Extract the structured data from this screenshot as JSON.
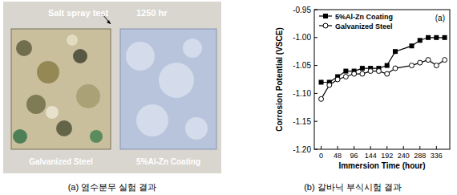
{
  "chart_data": {
    "type": "line",
    "annotation": "(a)",
    "x_label": "Immersion Time (hour)",
    "y_label": "Corrosion Potential (VSCE)",
    "x": [
      0,
      24,
      48,
      72,
      96,
      120,
      144,
      168,
      192,
      216,
      264,
      288,
      312,
      336,
      360
    ],
    "series": [
      {
        "name": "5%Al-Zn Coating",
        "color": "#000000",
        "marker": "square",
        "line_style": "solid",
        "values": [
          -1.08,
          -1.08,
          -1.07,
          -1.06,
          -1.06,
          -1.055,
          -1.055,
          -1.055,
          -1.05,
          -1.025,
          -1.015,
          -1.005,
          -1.0,
          -1.0,
          -1.0
        ]
      },
      {
        "name": "Galvanized Steel",
        "color": "#000000",
        "marker": "open-circle",
        "line_style": "solid",
        "values": [
          -1.11,
          -1.085,
          -1.075,
          -1.07,
          -1.065,
          -1.065,
          -1.06,
          -1.06,
          -1.065,
          -1.055,
          -1.05,
          -1.045,
          -1.04,
          -1.05,
          -1.04
        ]
      }
    ],
    "xlim": [
      -20,
      375
    ],
    "xticks": [
      0,
      48,
      96,
      144,
      192,
      240,
      288,
      336
    ],
    "ylim": [
      -1.2,
      -0.95
    ],
    "yticks": [
      {
        "value": -1.2,
        "label": "-1.20"
      },
      -1.15,
      {
        "value": -1.1,
        "label": "-1.10"
      },
      -1.05,
      {
        "value": -1.0,
        "label": "-1.00"
      },
      -0.95
    ],
    "legend": "top-left",
    "grid": false
  },
  "photo": {
    "title": "Salt spray test",
    "duration": "1250 hr",
    "labels": [
      "Galvanized Steel",
      "5%Al-Zn Coating"
    ]
  },
  "captions": [
    "(a) 염수분무 실험 결과",
    "(b) 갈바닉 부식시험 결과"
  ]
}
